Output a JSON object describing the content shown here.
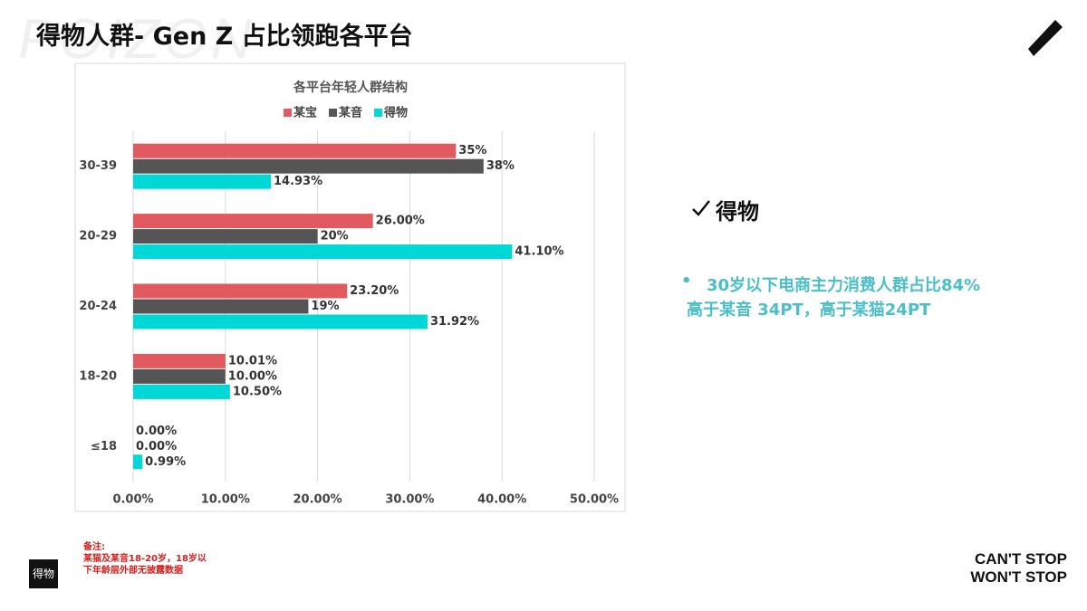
{
  "title": "得物人群- Gen Z 占比领跑各平台",
  "watermark": "POIZON",
  "chart_data": {
    "type": "bar",
    "orientation": "horizontal",
    "title": "各平台年轻人群结构",
    "categories": [
      "30-39",
      "20-29",
      "20-24",
      "18-20",
      "≤18"
    ],
    "series": [
      {
        "name": "某宝",
        "color": "#e05a5f",
        "values": [
          35,
          26.0,
          23.2,
          10.01,
          0.0
        ],
        "value_labels": [
          "35%",
          "26.00%",
          "23.20%",
          "10.01%",
          "0.00%"
        ]
      },
      {
        "name": "某音",
        "color": "#555555",
        "values": [
          38,
          20,
          19,
          10.0,
          0.0
        ],
        "value_labels": [
          "38%",
          "20%",
          "19%",
          "10.00%",
          "0.00%"
        ]
      },
      {
        "name": "得物",
        "color": "#00d8d8",
        "values": [
          14.93,
          41.1,
          31.92,
          10.5,
          0.99
        ],
        "value_labels": [
          "14.93%",
          "41.10%",
          "31.92%",
          "10.50%",
          "0.99%"
        ]
      }
    ],
    "xlim": [
      0,
      50
    ],
    "xticks": [
      {
        "value": 0,
        "label": "0.00%"
      },
      {
        "value": 10,
        "label": "10.00%"
      },
      {
        "value": 20,
        "label": "20.00%"
      },
      {
        "value": 30,
        "label": "30.00%"
      },
      {
        "value": 40,
        "label": "40.00%"
      },
      {
        "value": 50,
        "label": "50.00%"
      }
    ],
    "grid": true,
    "legend": "top"
  },
  "highlight": {
    "heading": "得物",
    "lines": [
      "30岁以下电商主力消费人群占比84%",
      "高于某音 34PT，高于某猫24PT"
    ]
  },
  "note": {
    "label": "备注:",
    "lines": [
      "某猫及某音18-20岁，18岁以",
      "下年龄层外部无披露数据"
    ]
  },
  "logo": "得物",
  "slogan": [
    "CAN'T STOP",
    "WON'T STOP"
  ]
}
